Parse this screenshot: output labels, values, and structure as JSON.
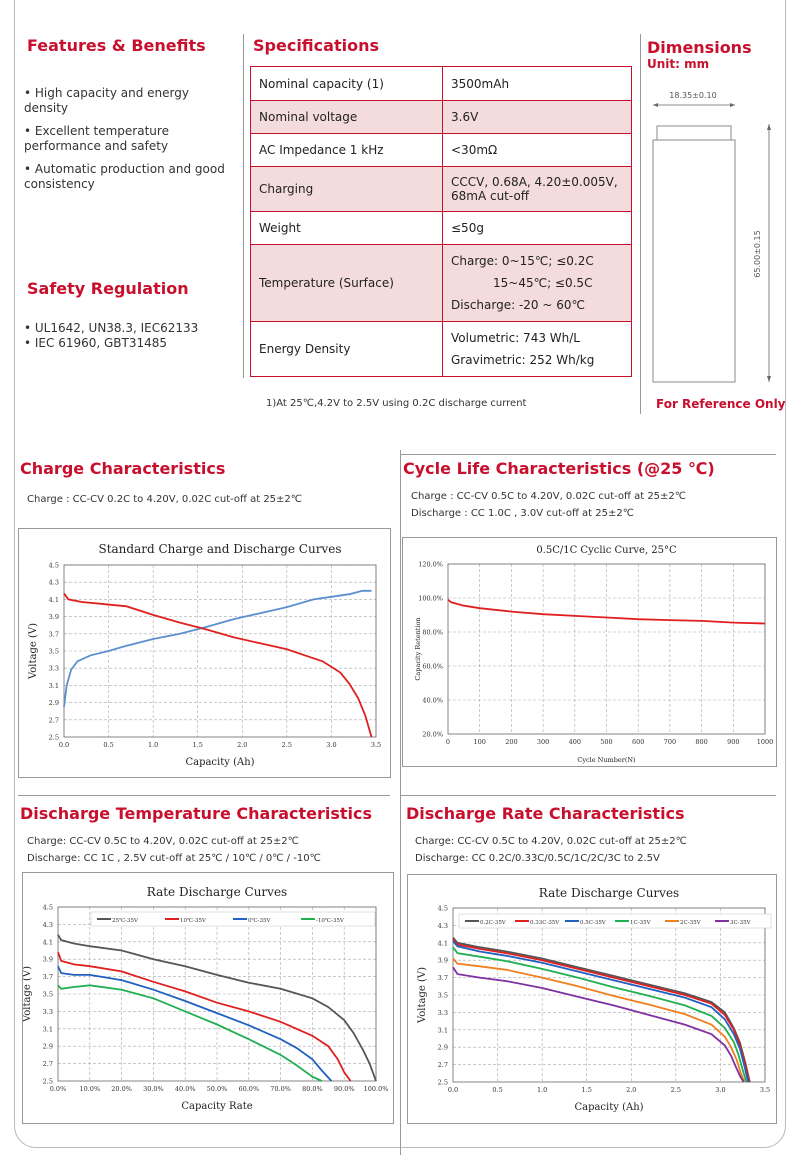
{
  "features": {
    "title": "Features & Benefits",
    "items": [
      "• High capacity and energy density",
      "• Excellent temperature performance and safety",
      "• Automatic production and good consistency"
    ]
  },
  "safety": {
    "title": "Safety Regulation",
    "items": [
      "• UL1642, UN38.3, IEC62133",
      "• IEC 61960, GBT31485"
    ]
  },
  "specs": {
    "title": "Specifications",
    "rows": [
      {
        "k": "Nominal capacity   (1)",
        "v": "3500mAh"
      },
      {
        "k": "Nominal voltage",
        "v": "3.6V"
      },
      {
        "k": "AC Impedance 1 kHz",
        "v": "<30mΩ"
      },
      {
        "k": "Charging",
        "v": "CCCV, 0.68A, 4.20±0.005V, 68mA cut-off"
      },
      {
        "k": "Weight",
        "v": "≤50g"
      },
      {
        "k": "Temperature (Surface)",
        "v1": "Charge: 0~15℃;   ≤0.2C",
        "v2": "15~45℃;   ≤0.5C",
        "v3": "Discharge: -20 ~ 60℃"
      },
      {
        "k": "Energy Density",
        "v1": "Volumetric: 743 Wh/L",
        "v2": "Gravimetric: 252 Wh/kg"
      }
    ],
    "footnote": "1)At 25℃,4.2V to 2.5V using 0.2C discharge current"
  },
  "dimensions": {
    "title": "Dimensions",
    "unit": "Unit: mm",
    "diameter": "18.35±0.10",
    "height": "65.00±0.15",
    "note": "For Reference Only"
  },
  "charge": {
    "title": "Charge Characteristics",
    "desc": "Charge : CC-CV 0.2C to 4.20V, 0.02C cut-off at 25±2℃",
    "chart_title": "Standard Charge and Discharge Curves",
    "xlabel": "Capacity (Ah)",
    "ylabel": "Voltage (V)",
    "xticks": [
      "0.0",
      "0.5",
      "1.0",
      "1.5",
      "2.0",
      "2.5",
      "3.0",
      "3.5"
    ],
    "yticks": [
      "2.5",
      "2.7",
      "2.9",
      "3.1",
      "3.3",
      "3.5",
      "3.7",
      "3.9",
      "4.1",
      "4.3",
      "4.5"
    ]
  },
  "cycle": {
    "title": "Cycle Life Characteristics (@25 ℃)",
    "desc1": "Charge : CC-CV 0.5C to 4.20V, 0.02C cut-off at 25±2℃",
    "desc2": "Discharge : CC 1.0C , 3.0V cut-off at 25±2℃",
    "chart_title": "0.5C/1C Cyclic Curve, 25°C",
    "xlabel": "Cycle Number(N)",
    "ylabel": "Capacity Retention",
    "xticks": [
      "0",
      "100",
      "200",
      "300",
      "400",
      "500",
      "600",
      "700",
      "800",
      "900",
      "1000"
    ],
    "yticks": [
      "20.0%",
      "40.0%",
      "60.0%",
      "80.0%",
      "100.0%",
      "120.0%"
    ]
  },
  "dtemp": {
    "title": "Discharge Temperature Characteristics",
    "desc1": "Charge: CC-CV 0.5C to 4.20V, 0.02C cut-off at 25±2℃",
    "desc2": "Discharge: CC 1C , 2.5V cut-off at 25℃ / 10℃ / 0℃ / -10℃",
    "chart_title": "Rate Discharge Curves",
    "xlabel": "Capacity Rate",
    "ylabel": "Voltage (V)",
    "legend": [
      "25℃-35V",
      "10℃-35V",
      "0℃-35V",
      "-10℃-35V"
    ],
    "xticks": [
      "0.0%",
      "10.0%",
      "20.0%",
      "30.0%",
      "40.0%",
      "50.0%",
      "60.0%",
      "70.0%",
      "80.0%",
      "90.0%",
      "100.0%"
    ],
    "yticks": [
      "2.5",
      "2.7",
      "2.9",
      "3.1",
      "3.3",
      "3.5",
      "3.7",
      "3.9",
      "4.1",
      "4.3",
      "4.5"
    ]
  },
  "drate": {
    "title": "Discharge Rate Characteristics",
    "desc1": "Charge: CC-CV 0.5C to 4.20V, 0.02C cut-off at 25±2℃",
    "desc2": "Discharge: CC 0.2C/0.33C/0.5C/1C/2C/3C to 2.5V",
    "chart_title": "Rate Discharge Curves",
    "xlabel": "Capacity (Ah)",
    "ylabel": "Voltage (V)",
    "legend": [
      "0.2C-35V",
      "0.33C-35V",
      "0.5C-35V",
      "1C-35V",
      "2C-35V",
      "3C-35V"
    ],
    "xticks": [
      "0.0",
      "0.5",
      "1.0",
      "1.5",
      "2.0",
      "2.5",
      "3.0",
      "3.5"
    ],
    "yticks": [
      "2.5",
      "2.7",
      "2.9",
      "3.1",
      "3.3",
      "3.5",
      "3.7",
      "3.9",
      "4.1",
      "4.3",
      "4.5"
    ]
  },
  "chart_data": [
    {
      "type": "line",
      "title": "Standard Charge and Discharge Curves",
      "xlabel": "Capacity (Ah)",
      "ylabel": "Voltage (V)",
      "xlim": [
        0,
        3.5
      ],
      "ylim": [
        2.5,
        4.5
      ],
      "series": [
        {
          "color": "#5b8fd0",
          "x": [
            0,
            0.03,
            0.08,
            0.15,
            0.3,
            0.5,
            0.7,
            1.0,
            1.3,
            1.6,
            1.9,
            2.2,
            2.5,
            2.8,
            3.0,
            3.2,
            3.35,
            3.45
          ],
          "y": [
            2.85,
            3.1,
            3.28,
            3.38,
            3.45,
            3.5,
            3.56,
            3.64,
            3.7,
            3.78,
            3.87,
            3.94,
            4.01,
            4.1,
            4.13,
            4.16,
            4.2,
            4.2
          ]
        },
        {
          "color": "#e02020",
          "x": [
            0,
            0.05,
            0.2,
            0.4,
            0.7,
            1.0,
            1.3,
            1.6,
            1.9,
            2.2,
            2.5,
            2.7,
            2.9,
            3.1,
            3.2,
            3.3,
            3.38,
            3.45
          ],
          "y": [
            4.17,
            4.1,
            4.07,
            4.05,
            4.02,
            3.92,
            3.83,
            3.75,
            3.66,
            3.59,
            3.52,
            3.45,
            3.38,
            3.25,
            3.12,
            2.95,
            2.75,
            2.5
          ]
        }
      ]
    },
    {
      "type": "line",
      "title": "0.5C/1C Cyclic Curve, 25°C",
      "xlabel": "Cycle Number(N)",
      "ylabel": "Capacity Retention",
      "xlim": [
        0,
        1000
      ],
      "ylim": [
        20,
        120
      ],
      "series": [
        {
          "color": "#e02020",
          "x": [
            0,
            10,
            50,
            100,
            200,
            300,
            400,
            500,
            600,
            700,
            800,
            900,
            1000
          ],
          "y": [
            99,
            97.5,
            95.5,
            94,
            92,
            90.5,
            89.5,
            88.5,
            87.5,
            87,
            86.5,
            85.5,
            85
          ]
        }
      ]
    },
    {
      "type": "line",
      "title": "Rate Discharge Curves",
      "xlabel": "Capacity Rate",
      "ylabel": "Voltage (V)",
      "xlim": [
        0,
        100
      ],
      "ylim": [
        2.5,
        4.5
      ],
      "series": [
        {
          "name": "25℃-35V",
          "color": "#555555",
          "x": [
            0,
            1,
            5,
            10,
            20,
            30,
            40,
            50,
            60,
            70,
            80,
            85,
            90,
            93,
            96,
            98,
            100
          ],
          "y": [
            4.18,
            4.12,
            4.08,
            4.05,
            4.0,
            3.9,
            3.82,
            3.72,
            3.63,
            3.56,
            3.45,
            3.35,
            3.2,
            3.05,
            2.85,
            2.7,
            2.5
          ]
        },
        {
          "name": "10℃-35V",
          "color": "#e02020",
          "x": [
            0,
            1,
            5,
            10,
            20,
            30,
            40,
            50,
            60,
            70,
            80,
            85,
            88,
            90,
            92
          ],
          "y": [
            3.98,
            3.88,
            3.84,
            3.82,
            3.76,
            3.64,
            3.53,
            3.4,
            3.3,
            3.18,
            3.02,
            2.9,
            2.75,
            2.6,
            2.5
          ]
        },
        {
          "name": "0℃-35V",
          "color": "#2060c0",
          "x": [
            0,
            1,
            5,
            10,
            20,
            30,
            40,
            50,
            60,
            70,
            75,
            80,
            83,
            86
          ],
          "y": [
            3.82,
            3.74,
            3.72,
            3.72,
            3.66,
            3.55,
            3.42,
            3.28,
            3.14,
            2.98,
            2.88,
            2.75,
            2.62,
            2.5
          ]
        },
        {
          "name": "-10℃-35V",
          "color": "#20b050",
          "x": [
            0,
            1,
            5,
            10,
            20,
            30,
            40,
            50,
            60,
            70,
            75,
            80,
            83
          ],
          "y": [
            3.6,
            3.56,
            3.58,
            3.6,
            3.55,
            3.45,
            3.3,
            3.15,
            2.98,
            2.8,
            2.68,
            2.55,
            2.5
          ]
        }
      ]
    },
    {
      "type": "line",
      "title": "Rate Discharge Curves",
      "xlabel": "Capacity (Ah)",
      "ylabel": "Voltage (V)",
      "xlim": [
        0,
        3.5
      ],
      "ylim": [
        2.5,
        4.5
      ],
      "series": [
        {
          "name": "0.2C-35V",
          "color": "#555555",
          "x": [
            0,
            0.05,
            0.3,
            0.6,
            1.0,
            1.4,
            1.8,
            2.2,
            2.6,
            2.9,
            3.05,
            3.15,
            3.22,
            3.28,
            3.33
          ],
          "y": [
            4.16,
            4.1,
            4.05,
            4.0,
            3.92,
            3.82,
            3.72,
            3.62,
            3.52,
            3.42,
            3.3,
            3.12,
            2.95,
            2.72,
            2.5
          ]
        },
        {
          "name": "0.33C-35V",
          "color": "#e02020",
          "x": [
            0,
            0.05,
            0.3,
            0.6,
            1.0,
            1.4,
            1.8,
            2.2,
            2.6,
            2.9,
            3.05,
            3.15,
            3.22,
            3.28,
            3.32
          ],
          "y": [
            4.14,
            4.08,
            4.03,
            3.98,
            3.9,
            3.8,
            3.7,
            3.6,
            3.5,
            3.4,
            3.27,
            3.1,
            2.92,
            2.7,
            2.5
          ]
        },
        {
          "name": "0.5C-35V",
          "color": "#2060c0",
          "x": [
            0,
            0.05,
            0.3,
            0.6,
            1.0,
            1.4,
            1.8,
            2.2,
            2.6,
            2.9,
            3.05,
            3.15,
            3.22,
            3.27,
            3.31
          ],
          "y": [
            4.12,
            4.06,
            4.0,
            3.95,
            3.87,
            3.77,
            3.67,
            3.57,
            3.47,
            3.36,
            3.22,
            3.05,
            2.88,
            2.68,
            2.5
          ]
        },
        {
          "name": "1C-35V",
          "color": "#20b050",
          "x": [
            0,
            0.05,
            0.3,
            0.6,
            1.0,
            1.4,
            1.8,
            2.2,
            2.6,
            2.9,
            3.05,
            3.15,
            3.2,
            3.25,
            3.29
          ],
          "y": [
            4.05,
            3.98,
            3.94,
            3.89,
            3.8,
            3.7,
            3.59,
            3.49,
            3.38,
            3.26,
            3.12,
            2.96,
            2.82,
            2.64,
            2.5
          ]
        },
        {
          "name": "2C-35V",
          "color": "#f07f20",
          "x": [
            0,
            0.05,
            0.3,
            0.6,
            1.0,
            1.4,
            1.8,
            2.2,
            2.6,
            2.9,
            3.05,
            3.12,
            3.18,
            3.23,
            3.27
          ],
          "y": [
            3.92,
            3.86,
            3.83,
            3.79,
            3.7,
            3.6,
            3.49,
            3.39,
            3.28,
            3.16,
            3.02,
            2.9,
            2.76,
            2.6,
            2.5
          ]
        },
        {
          "name": "3C-35V",
          "color": "#8030a0",
          "x": [
            0,
            0.05,
            0.3,
            0.6,
            1.0,
            1.4,
            1.8,
            2.2,
            2.6,
            2.9,
            3.05,
            3.12,
            3.17,
            3.22,
            3.26
          ],
          "y": [
            3.82,
            3.74,
            3.7,
            3.66,
            3.58,
            3.48,
            3.38,
            3.27,
            3.16,
            3.05,
            2.92,
            2.8,
            2.68,
            2.57,
            2.5
          ]
        }
      ]
    }
  ]
}
